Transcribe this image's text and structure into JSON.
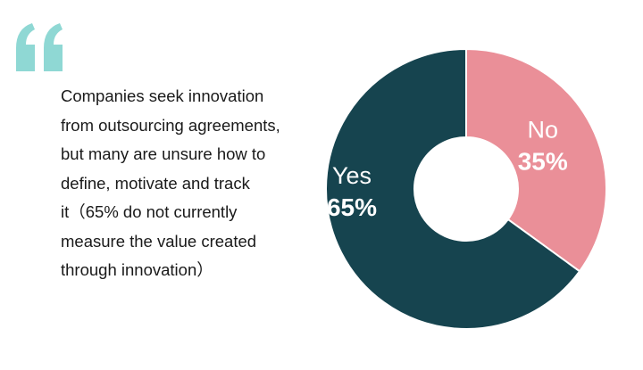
{
  "quote": {
    "text": "Companies seek innovation\nfrom outsourcing agreements,\nbut many are unsure how to\ndefine, motivate and track\nit（65% do not currently\nmeasure the value created\nthrough innovation）"
  },
  "colors": {
    "quote_mark": "#8fd8d4",
    "text": "#1a1a1a",
    "yes": "#16444f",
    "no": "#ea8f98"
  },
  "chart_data": {
    "type": "pie",
    "donut": true,
    "slices": [
      {
        "label": "No",
        "value": 35,
        "value_label": "35%",
        "color": "#ea8f98"
      },
      {
        "label": "Yes",
        "value": 65,
        "value_label": "65%",
        "color": "#16444f"
      }
    ],
    "start": "top",
    "direction": "clockwise"
  }
}
